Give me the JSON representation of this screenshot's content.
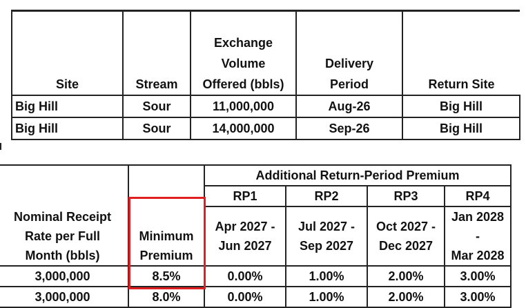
{
  "table1": {
    "headers": [
      "Site",
      "Stream",
      "Exchange Volume Offered (bbls)",
      "Delivery Period",
      "Return Site"
    ],
    "header_lines": {
      "volume": [
        "Exchange",
        "Volume",
        "Offered (bbls)"
      ],
      "delivery": [
        "Delivery",
        "Period"
      ]
    },
    "rows": [
      [
        "Big Hill",
        "Sour",
        "11,000,000",
        "Aug-26",
        "Big Hill"
      ],
      [
        "Big Hill",
        "Sour",
        "14,000,000",
        "Sep-26",
        "Big Hill"
      ]
    ]
  },
  "table2": {
    "nominal_lines": [
      "Nominal Receipt",
      "Rate per Full",
      "Month (bbls)"
    ],
    "minimum_lines": [
      "Minimum",
      "Premium"
    ],
    "group_header": "Additional Return-Period Premium",
    "periods": [
      {
        "code": "RP1",
        "start": "Apr 2027 -",
        "end": "Jun 2027"
      },
      {
        "code": "RP2",
        "start": "Jul 2027 -",
        "end": "Sep 2027"
      },
      {
        "code": "RP3",
        "start": "Oct 2027 -",
        "end": "Dec 2027"
      },
      {
        "code": "RP4",
        "start": "Jan 2028 -",
        "end": "Mar 2028"
      }
    ],
    "rows": [
      [
        "3,000,000",
        "8.5%",
        "0.00%",
        "1.00%",
        "2.00%",
        "3.00%"
      ],
      [
        "3,000,000",
        "8.0%",
        "0.00%",
        "1.00%",
        "2.00%",
        "3.00%"
      ]
    ]
  },
  "highlight_color": "#e02020"
}
